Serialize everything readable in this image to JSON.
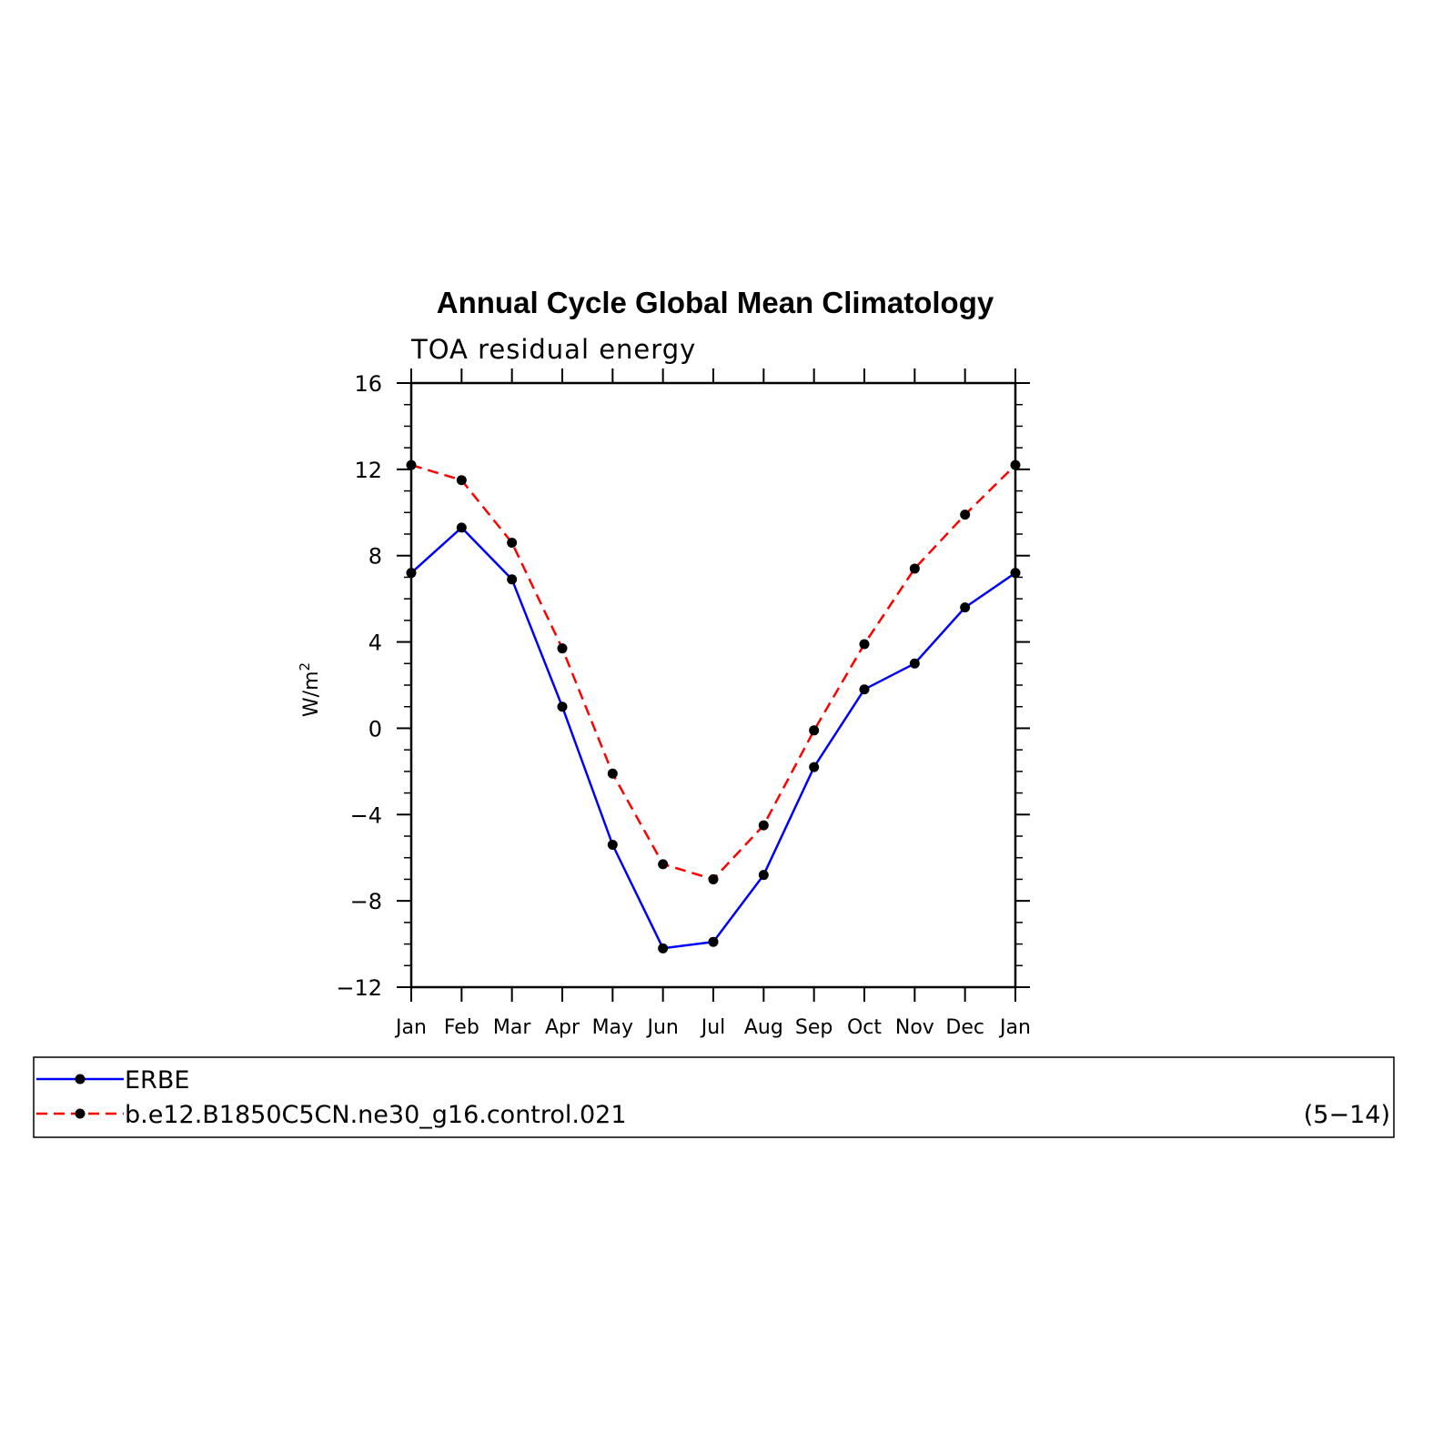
{
  "chart_data": {
    "type": "line",
    "title": "Annual Cycle Global Mean Climatology",
    "subtitle": "TOA residual energy",
    "ylabel_main": "W/m",
    "ylabel_sup": "2",
    "xlabel": "",
    "categories": [
      "Jan",
      "Feb",
      "Mar",
      "Apr",
      "May",
      "Jun",
      "Jul",
      "Aug",
      "Sep",
      "Oct",
      "Nov",
      "Dec",
      "Jan"
    ],
    "ylim": [
      -12,
      16
    ],
    "yticks": [
      -12,
      -8,
      -4,
      0,
      4,
      8,
      12,
      16
    ],
    "ytick_labels": [
      "−12",
      "−8",
      "−4",
      "0",
      "4",
      "8",
      "12",
      "16"
    ],
    "grid": false,
    "legend_position": "bottom",
    "series": [
      {
        "name": "ERBE",
        "color": "#0000ff",
        "dash": "solid",
        "marker": "filled-circle",
        "values": [
          7.2,
          9.3,
          6.9,
          1.0,
          -5.4,
          -10.2,
          -9.9,
          -6.8,
          -1.8,
          1.8,
          3.0,
          5.6,
          7.2
        ]
      },
      {
        "name": "b.e12.B1850C5CN.ne30_g16.control.021",
        "color": "#ff0000",
        "dash": "dashed",
        "marker": "filled-circle",
        "values": [
          12.2,
          11.5,
          8.6,
          3.7,
          -2.1,
          -6.3,
          -7.0,
          -4.5,
          -0.1,
          3.9,
          7.4,
          9.9,
          12.2
        ]
      }
    ],
    "corner_note": "(5−14)"
  }
}
